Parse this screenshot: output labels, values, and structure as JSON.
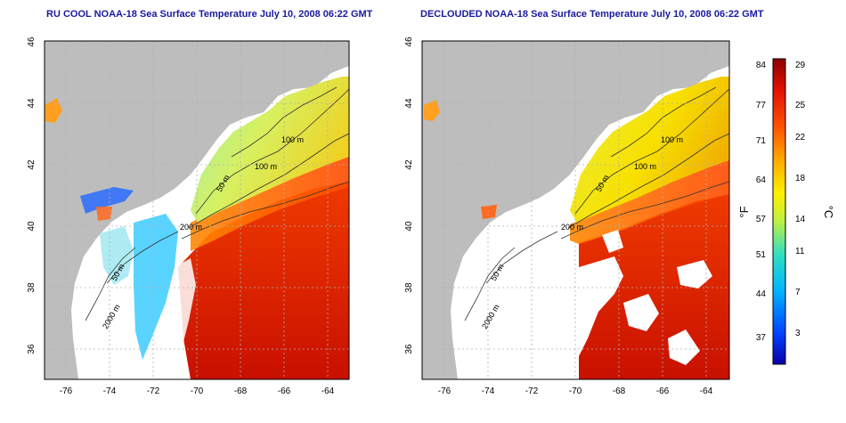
{
  "panels": [
    {
      "id": "left",
      "title": "RU COOL NOAA-18 Sea Surface Temperature July 10, 2008 06:22 GMT",
      "contour_labels": [
        "100 m",
        "100 m",
        "50 m",
        "200 m",
        "50 m",
        "2000 m"
      ]
    },
    {
      "id": "right",
      "title": "DECLOUDED NOAA-18 Sea Surface Temperature July 10, 2008 06:22 GMT",
      "contour_labels": [
        "100 m",
        "100 m",
        "50 m",
        "200 m",
        "50 m",
        "2000 m"
      ]
    }
  ],
  "map_axes": {
    "lon_ticks": [
      "-76",
      "-74",
      "-72",
      "-70",
      "-68",
      "-66",
      "-64"
    ],
    "lat_ticks": [
      "46",
      "44",
      "42",
      "40",
      "38",
      "36"
    ],
    "lon_range": [
      -77,
      -63
    ],
    "lat_range": [
      35,
      46
    ]
  },
  "colorbar": {
    "fahrenheit_ticks": [
      "84",
      "77",
      "71",
      "64",
      "57",
      "51",
      "44",
      "37"
    ],
    "celsius_ticks": [
      "29",
      "25",
      "22",
      "18",
      "14",
      "11",
      "7",
      "3"
    ],
    "fahrenheit_unit": "°F",
    "celsius_unit": "°C"
  },
  "colors": {
    "title": "#1a1aa0",
    "land": "#bdbdbd",
    "no_data": "#ffffff",
    "grid": "#b0b0b0",
    "contour": "#333333"
  }
}
